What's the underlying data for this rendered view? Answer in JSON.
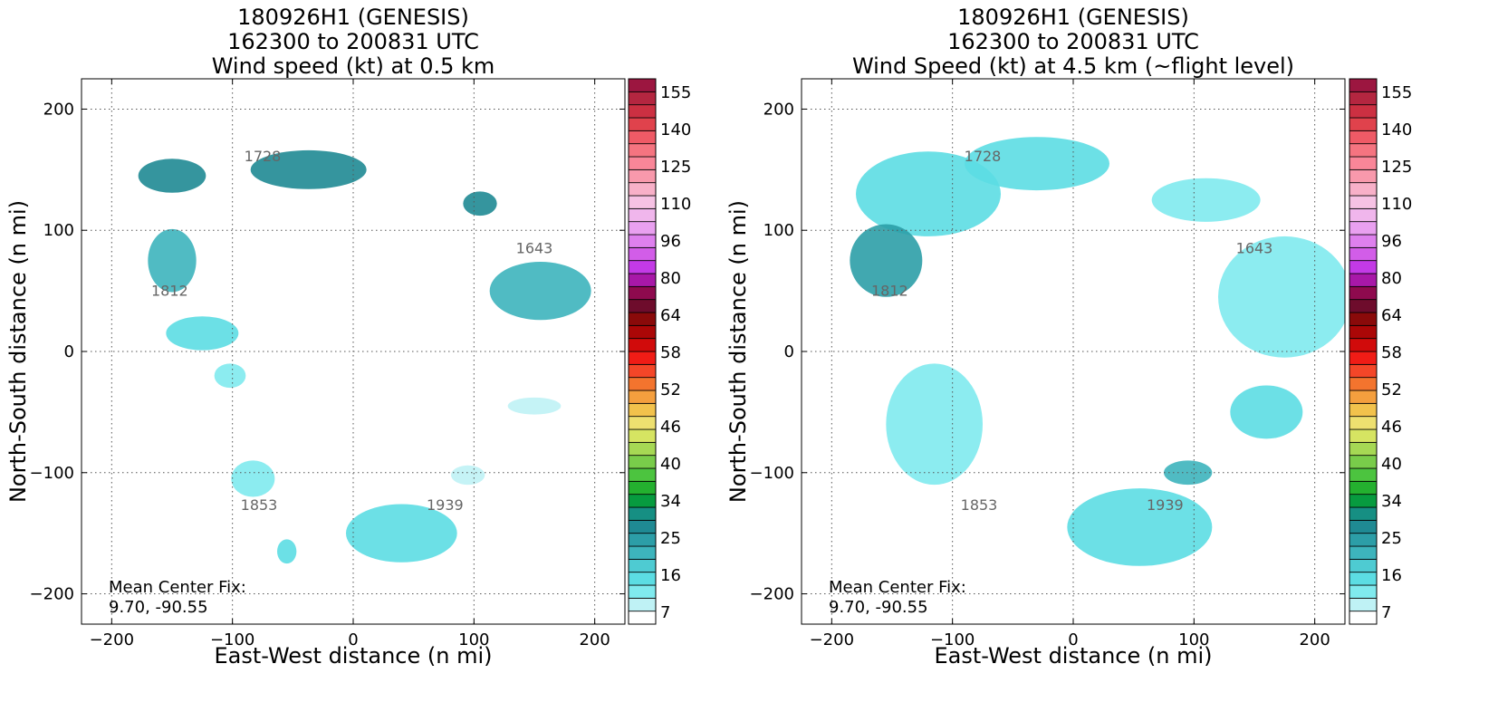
{
  "chart_data": [
    {
      "type": "scatter",
      "title": [
        "180926H1 (GENESIS)",
        "162300 to 200831 UTC",
        "Wind speed (kt) at 0.5 km"
      ],
      "xlabel": "East-West distance (n mi)",
      "ylabel": "North-South distance (n mi)",
      "xlim": [
        -225,
        225
      ],
      "ylim": [
        -225,
        225
      ],
      "xticks": [
        -200,
        -100,
        0,
        100,
        200
      ],
      "yticks": [
        -200,
        -100,
        0,
        100,
        200
      ],
      "grid": true,
      "annotation": [
        "Mean Center Fix:",
        "9.70, -90.55"
      ],
      "time_labels": [
        {
          "text": "1728",
          "x": -75,
          "y": 157
        },
        {
          "text": "1643",
          "x": 150,
          "y": 81
        },
        {
          "text": "1812",
          "x": -152,
          "y": 46
        },
        {
          "text": "1853",
          "x": -78,
          "y": -131
        },
        {
          "text": "1939",
          "x": 76,
          "y": -131
        }
      ],
      "wind_patches": [
        {
          "x": -150,
          "y": 145,
          "rx": 28,
          "ry": 14,
          "kt": 24
        },
        {
          "x": -37,
          "y": 150,
          "rx": 48,
          "ry": 16,
          "kt": 24
        },
        {
          "x": 105,
          "y": 122,
          "rx": 14,
          "ry": 10,
          "kt": 25
        },
        {
          "x": -150,
          "y": 75,
          "rx": 20,
          "ry": 26,
          "kt": 18
        },
        {
          "x": 155,
          "y": 50,
          "rx": 42,
          "ry": 24,
          "kt": 20
        },
        {
          "x": -125,
          "y": 15,
          "rx": 30,
          "ry": 14,
          "kt": 12
        },
        {
          "x": -102,
          "y": -20,
          "rx": 13,
          "ry": 10,
          "kt": 9
        },
        {
          "x": -83,
          "y": -105,
          "rx": 18,
          "ry": 15,
          "kt": 10
        },
        {
          "x": 40,
          "y": -150,
          "rx": 46,
          "ry": 24,
          "kt": 14
        },
        {
          "x": 95,
          "y": -102,
          "rx": 14,
          "ry": 8,
          "kt": 8
        },
        {
          "x": -55,
          "y": -165,
          "rx": 8,
          "ry": 10,
          "kt": 14
        },
        {
          "x": 150,
          "y": -45,
          "rx": 22,
          "ry": 7,
          "kt": 8
        }
      ]
    },
    {
      "type": "scatter",
      "title": [
        "180926H1 (GENESIS)",
        "162300 to 200831 UTC",
        "Wind Speed (kt) at 4.5 km (~flight level)"
      ],
      "xlabel": "East-West distance (n mi)",
      "ylabel": "North-South distance (n mi)",
      "xlim": [
        -225,
        225
      ],
      "ylim": [
        -225,
        225
      ],
      "xticks": [
        -200,
        -100,
        0,
        100,
        200
      ],
      "yticks": [
        -200,
        -100,
        0,
        100,
        200
      ],
      "grid": true,
      "annotation": [
        "Mean Center Fix:",
        "9.70, -90.55"
      ],
      "time_labels": [
        {
          "text": "1728",
          "x": -75,
          "y": 157
        },
        {
          "text": "1643",
          "x": 150,
          "y": 81
        },
        {
          "text": "1812",
          "x": -152,
          "y": 46
        },
        {
          "text": "1853",
          "x": -78,
          "y": -131
        },
        {
          "text": "1939",
          "x": 76,
          "y": -131
        }
      ],
      "wind_patches": [
        {
          "x": -120,
          "y": 130,
          "rx": 60,
          "ry": 35,
          "kt": 13
        },
        {
          "x": -30,
          "y": 155,
          "rx": 60,
          "ry": 22,
          "kt": 12
        },
        {
          "x": 110,
          "y": 125,
          "rx": 45,
          "ry": 18,
          "kt": 10
        },
        {
          "x": -155,
          "y": 75,
          "rx": 30,
          "ry": 30,
          "kt": 22
        },
        {
          "x": 175,
          "y": 45,
          "rx": 55,
          "ry": 50,
          "kt": 9
        },
        {
          "x": -115,
          "y": -60,
          "rx": 40,
          "ry": 50,
          "kt": 10
        },
        {
          "x": 160,
          "y": -50,
          "rx": 30,
          "ry": 22,
          "kt": 14
        },
        {
          "x": 55,
          "y": -145,
          "rx": 60,
          "ry": 32,
          "kt": 13
        },
        {
          "x": 95,
          "y": -100,
          "rx": 20,
          "ry": 10,
          "kt": 18
        }
      ]
    }
  ],
  "colorbar": {
    "tick_labels": [
      "155",
      "140",
      "125",
      "110",
      "96",
      "80",
      "64",
      "58",
      "52",
      "46",
      "40",
      "34",
      "25",
      "16",
      "7"
    ],
    "colors": [
      "#ffffff",
      "#bff2f5",
      "#80eaee",
      "#5cdde3",
      "#4ecbd2",
      "#3db4bc",
      "#2c9ea7",
      "#1f8a93",
      "#168f83",
      "#079b3f",
      "#24b02f",
      "#4cc43f",
      "#79cc4a",
      "#a6d854",
      "#d6e462",
      "#eee070",
      "#f2c24c",
      "#f49f3e",
      "#f3742e",
      "#f44628",
      "#f01c16",
      "#d10b0b",
      "#ab0707",
      "#8a0a0a",
      "#6e0c2c",
      "#8e0a4e",
      "#a818a8",
      "#c33ae6",
      "#d25de8",
      "#de80ee",
      "#e9a0f0",
      "#f0b6ec",
      "#f6c2e4",
      "#f8b0c8",
      "#f899ac",
      "#f98698",
      "#f57480",
      "#ef5a66",
      "#e0424c",
      "#cc3042",
      "#b42640",
      "#9c1640"
    ]
  }
}
